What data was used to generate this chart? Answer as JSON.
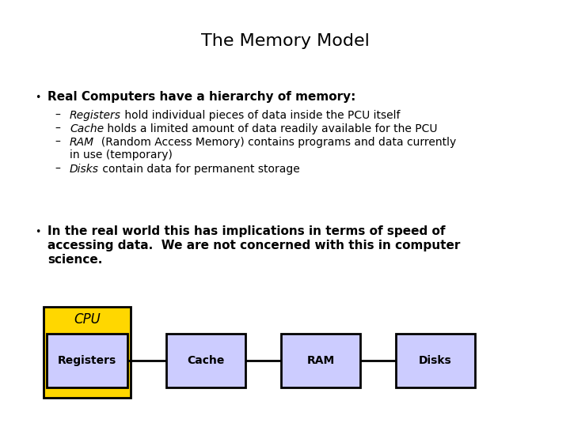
{
  "title": "The Memory Model",
  "title_fontsize": 16,
  "background_color": "#ffffff",
  "bullet1_bold": "Real Computers have a hierarchy of memory:",
  "sub_items": [
    {
      "italic": "Registers",
      "normal": " hold individual pieces of data inside the PCU itself"
    },
    {
      "italic": "Cache",
      "normal": " holds a limited amount of data readily available for the PCU"
    },
    {
      "italic": "RAM",
      "normal": "  (Random Access Memory) contains programs and data currently\n           in use (temporary)"
    },
    {
      "italic": "Disks",
      "normal": " contain data for permanent storage"
    }
  ],
  "bullet2_line1": "In the real world this has implications in terms of speed of",
  "bullet2_line2": "accessing data.  We are not concerned with this in computer",
  "bullet2_line3": "science.",
  "cpu_box_color": "#FFD700",
  "cpu_text": "CPU",
  "registers_box_color": "#CCCCFF",
  "registers_text": "Registers",
  "cache_box_color": "#CCCCFF",
  "cache_text": "Cache",
  "ram_box_color": "#CCCCFF",
  "ram_text": "RAM",
  "disks_box_color": "#CCCCFF",
  "disks_text": "Disks",
  "line_color": "#000000",
  "font_family": "DejaVu Sans"
}
